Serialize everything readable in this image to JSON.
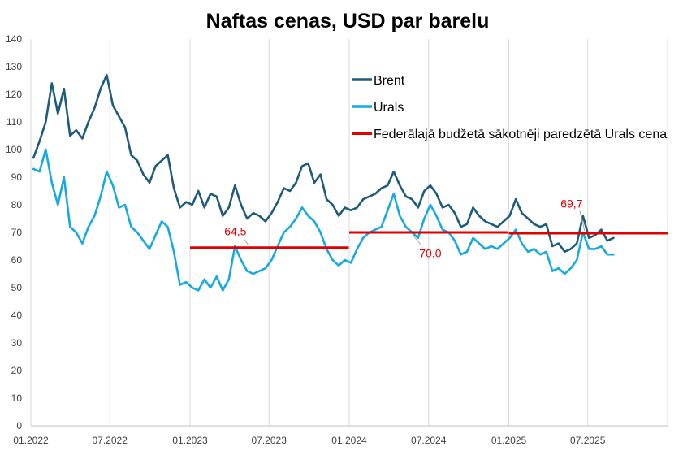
{
  "chart_data": {
    "type": "line",
    "title": "Naftas cenas, USD par barelu",
    "xlabel": "",
    "ylabel": "",
    "ylim": [
      0,
      140
    ],
    "yticks": [
      0,
      10,
      20,
      30,
      40,
      50,
      60,
      70,
      80,
      90,
      100,
      110,
      120,
      130,
      140
    ],
    "xlim": [
      "2022-01-01",
      "2025-12-31"
    ],
    "xticks": [
      {
        "date": "2022-01-01",
        "label": "01.2022"
      },
      {
        "date": "2022-07-01",
        "label": "07.2022"
      },
      {
        "date": "2023-01-01",
        "label": "01.2023"
      },
      {
        "date": "2023-07-01",
        "label": "07.2023"
      },
      {
        "date": "2024-01-01",
        "label": "01.2024"
      },
      {
        "date": "2024-07-01",
        "label": "07.2024"
      },
      {
        "date": "2025-01-01",
        "label": "01.2025"
      },
      {
        "date": "2025-07-01",
        "label": "07.2025"
      }
    ],
    "grid": "vertical",
    "legend_position": "top-right",
    "series": [
      {
        "name": "Brent",
        "color": "#1f5b7a",
        "points": [
          [
            "2022-01-07",
            97
          ],
          [
            "2022-01-21",
            103
          ],
          [
            "2022-02-04",
            110
          ],
          [
            "2022-02-18",
            124
          ],
          [
            "2022-03-04",
            113
          ],
          [
            "2022-03-18",
            122
          ],
          [
            "2022-04-01",
            105
          ],
          [
            "2022-04-15",
            107
          ],
          [
            "2022-04-29",
            104
          ],
          [
            "2022-05-13",
            110
          ],
          [
            "2022-05-27",
            115
          ],
          [
            "2022-06-10",
            122
          ],
          [
            "2022-06-24",
            127
          ],
          [
            "2022-07-08",
            116
          ],
          [
            "2022-07-22",
            112
          ],
          [
            "2022-08-05",
            108
          ],
          [
            "2022-08-19",
            98
          ],
          [
            "2022-09-02",
            96
          ],
          [
            "2022-09-16",
            91
          ],
          [
            "2022-09-30",
            88
          ],
          [
            "2022-10-14",
            94
          ],
          [
            "2022-10-28",
            96
          ],
          [
            "2022-11-11",
            98
          ],
          [
            "2022-11-25",
            86
          ],
          [
            "2022-12-09",
            79
          ],
          [
            "2022-12-23",
            81
          ],
          [
            "2023-01-06",
            80
          ],
          [
            "2023-01-20",
            85
          ],
          [
            "2023-02-03",
            79
          ],
          [
            "2023-02-17",
            84
          ],
          [
            "2023-03-03",
            83
          ],
          [
            "2023-03-17",
            76
          ],
          [
            "2023-03-31",
            79
          ],
          [
            "2023-04-14",
            87
          ],
          [
            "2023-04-28",
            80
          ],
          [
            "2023-05-12",
            75
          ],
          [
            "2023-05-26",
            77
          ],
          [
            "2023-06-09",
            76
          ],
          [
            "2023-06-23",
            74
          ],
          [
            "2023-07-07",
            77
          ],
          [
            "2023-07-21",
            81
          ],
          [
            "2023-08-04",
            86
          ],
          [
            "2023-08-18",
            85
          ],
          [
            "2023-09-01",
            88
          ],
          [
            "2023-09-15",
            94
          ],
          [
            "2023-09-29",
            95
          ],
          [
            "2023-10-13",
            88
          ],
          [
            "2023-10-27",
            91
          ],
          [
            "2023-11-10",
            82
          ],
          [
            "2023-11-24",
            80
          ],
          [
            "2023-12-08",
            76
          ],
          [
            "2023-12-22",
            79
          ],
          [
            "2024-01-05",
            78
          ],
          [
            "2024-01-19",
            79
          ],
          [
            "2024-02-02",
            82
          ],
          [
            "2024-02-16",
            83
          ],
          [
            "2024-03-01",
            84
          ],
          [
            "2024-03-15",
            86
          ],
          [
            "2024-03-29",
            87
          ],
          [
            "2024-04-12",
            92
          ],
          [
            "2024-04-26",
            87
          ],
          [
            "2024-05-10",
            83
          ],
          [
            "2024-05-24",
            82
          ],
          [
            "2024-06-07",
            79
          ],
          [
            "2024-06-21",
            85
          ],
          [
            "2024-07-05",
            87
          ],
          [
            "2024-07-19",
            84
          ],
          [
            "2024-08-02",
            79
          ],
          [
            "2024-08-16",
            80
          ],
          [
            "2024-08-30",
            77
          ],
          [
            "2024-09-13",
            72
          ],
          [
            "2024-09-27",
            73
          ],
          [
            "2024-10-11",
            79
          ],
          [
            "2024-10-25",
            76
          ],
          [
            "2024-11-08",
            74
          ],
          [
            "2024-11-22",
            73
          ],
          [
            "2024-12-06",
            72
          ],
          [
            "2024-12-20",
            74
          ],
          [
            "2025-01-03",
            76
          ],
          [
            "2025-01-17",
            82
          ],
          [
            "2025-01-31",
            77
          ],
          [
            "2025-02-14",
            75
          ],
          [
            "2025-02-28",
            73
          ],
          [
            "2025-03-14",
            72
          ],
          [
            "2025-03-28",
            73
          ],
          [
            "2025-04-11",
            65
          ],
          [
            "2025-04-25",
            66
          ],
          [
            "2025-05-09",
            63
          ],
          [
            "2025-05-23",
            64
          ],
          [
            "2025-06-06",
            66
          ],
          [
            "2025-06-20",
            76
          ],
          [
            "2025-07-04",
            68
          ],
          [
            "2025-07-18",
            69
          ],
          [
            "2025-08-01",
            71
          ],
          [
            "2025-08-15",
            67
          ],
          [
            "2025-08-29",
            68
          ]
        ]
      },
      {
        "name": "Urals",
        "color": "#17a9e1",
        "points": [
          [
            "2022-01-07",
            93
          ],
          [
            "2022-01-21",
            92
          ],
          [
            "2022-02-04",
            100
          ],
          [
            "2022-02-18",
            88
          ],
          [
            "2022-03-04",
            80
          ],
          [
            "2022-03-18",
            90
          ],
          [
            "2022-04-01",
            72
          ],
          [
            "2022-04-15",
            70
          ],
          [
            "2022-04-29",
            66
          ],
          [
            "2022-05-13",
            72
          ],
          [
            "2022-05-27",
            76
          ],
          [
            "2022-06-10",
            83
          ],
          [
            "2022-06-24",
            92
          ],
          [
            "2022-07-08",
            87
          ],
          [
            "2022-07-22",
            79
          ],
          [
            "2022-08-05",
            80
          ],
          [
            "2022-08-19",
            72
          ],
          [
            "2022-09-02",
            70
          ],
          [
            "2022-09-16",
            67
          ],
          [
            "2022-09-30",
            64
          ],
          [
            "2022-10-14",
            69
          ],
          [
            "2022-10-28",
            74
          ],
          [
            "2022-11-11",
            72
          ],
          [
            "2022-11-25",
            63
          ],
          [
            "2022-12-09",
            51
          ],
          [
            "2022-12-23",
            52
          ],
          [
            "2023-01-06",
            50
          ],
          [
            "2023-01-20",
            49
          ],
          [
            "2023-02-03",
            53
          ],
          [
            "2023-02-17",
            50
          ],
          [
            "2023-03-03",
            54
          ],
          [
            "2023-03-17",
            49
          ],
          [
            "2023-03-31",
            53
          ],
          [
            "2023-04-14",
            65
          ],
          [
            "2023-04-28",
            60
          ],
          [
            "2023-05-12",
            56
          ],
          [
            "2023-05-26",
            55
          ],
          [
            "2023-06-09",
            56
          ],
          [
            "2023-06-23",
            57
          ],
          [
            "2023-07-07",
            60
          ],
          [
            "2023-07-21",
            65
          ],
          [
            "2023-08-04",
            70
          ],
          [
            "2023-08-18",
            72
          ],
          [
            "2023-09-01",
            75
          ],
          [
            "2023-09-15",
            79
          ],
          [
            "2023-09-29",
            76
          ],
          [
            "2023-10-13",
            74
          ],
          [
            "2023-10-27",
            70
          ],
          [
            "2023-11-10",
            64
          ],
          [
            "2023-11-24",
            60
          ],
          [
            "2023-12-08",
            58
          ],
          [
            "2023-12-22",
            60
          ],
          [
            "2024-01-05",
            59
          ],
          [
            "2024-01-19",
            64
          ],
          [
            "2024-02-02",
            68
          ],
          [
            "2024-02-16",
            70
          ],
          [
            "2024-03-01",
            71
          ],
          [
            "2024-03-15",
            72
          ],
          [
            "2024-03-29",
            78
          ],
          [
            "2024-04-12",
            84
          ],
          [
            "2024-04-26",
            76
          ],
          [
            "2024-05-10",
            72
          ],
          [
            "2024-05-24",
            70
          ],
          [
            "2024-06-07",
            68
          ],
          [
            "2024-06-21",
            75
          ],
          [
            "2024-07-05",
            80
          ],
          [
            "2024-07-19",
            76
          ],
          [
            "2024-08-02",
            71
          ],
          [
            "2024-08-16",
            70
          ],
          [
            "2024-08-30",
            67
          ],
          [
            "2024-09-13",
            62
          ],
          [
            "2024-09-27",
            63
          ],
          [
            "2024-10-11",
            68
          ],
          [
            "2024-10-25",
            66
          ],
          [
            "2024-11-08",
            64
          ],
          [
            "2024-11-22",
            65
          ],
          [
            "2024-12-06",
            64
          ],
          [
            "2024-12-20",
            66
          ],
          [
            "2025-01-03",
            68
          ],
          [
            "2025-01-17",
            71
          ],
          [
            "2025-01-31",
            66
          ],
          [
            "2025-02-14",
            63
          ],
          [
            "2025-02-28",
            64
          ],
          [
            "2025-03-14",
            62
          ],
          [
            "2025-03-28",
            63
          ],
          [
            "2025-04-11",
            56
          ],
          [
            "2025-04-25",
            57
          ],
          [
            "2025-05-09",
            55
          ],
          [
            "2025-05-23",
            57
          ],
          [
            "2025-06-06",
            60
          ],
          [
            "2025-06-20",
            70
          ],
          [
            "2025-07-04",
            64
          ],
          [
            "2025-07-18",
            64
          ],
          [
            "2025-08-01",
            65
          ],
          [
            "2025-08-15",
            62
          ],
          [
            "2025-08-29",
            62
          ]
        ]
      }
    ],
    "reference_lines": {
      "name": "Federālajā budžetā sākotnēji paredzētā Urals cena",
      "color": "#e00000",
      "segments": [
        {
          "start": "2023-01-01",
          "end": "2023-12-31",
          "value": 64.5,
          "label": "64,5",
          "label_x": "2023-04-15",
          "label_y": 69
        },
        {
          "start": "2024-01-01",
          "end": "2024-12-31",
          "value": 70.0,
          "label": "70,0",
          "label_x": "2024-07-05",
          "label_y": 61
        },
        {
          "start": "2025-01-01",
          "end": "2025-12-31",
          "value": 69.7,
          "label": "69,7",
          "label_x": "2025-05-25",
          "label_y": 79
        }
      ]
    }
  }
}
